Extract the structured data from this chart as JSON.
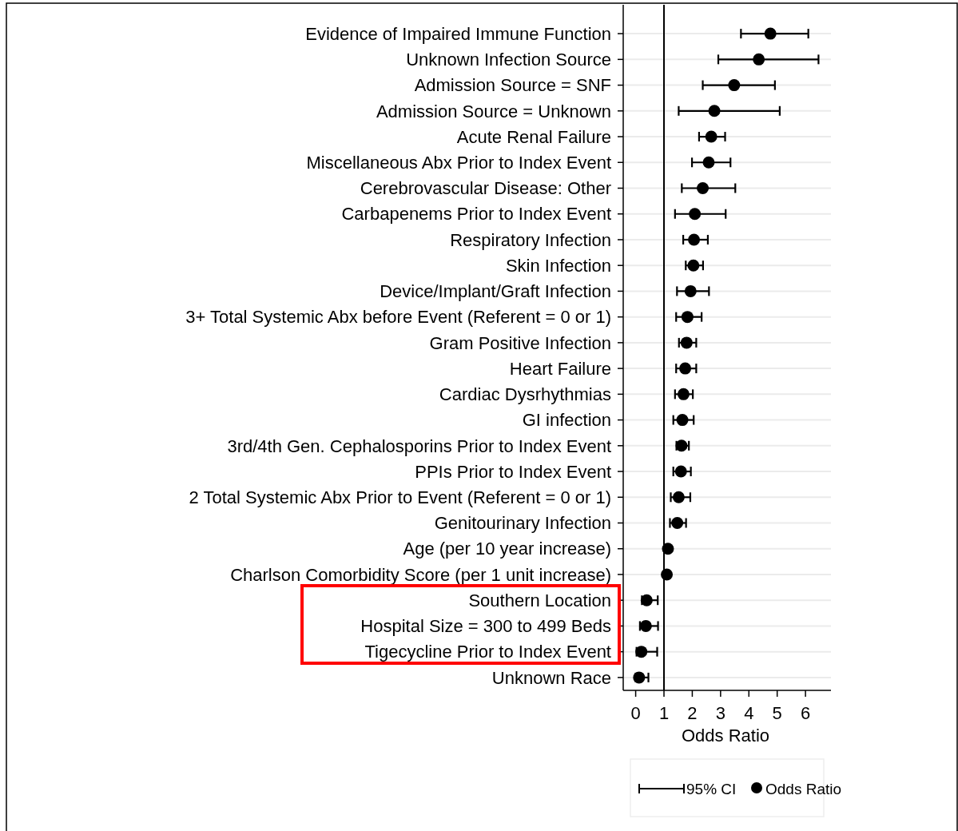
{
  "chart_data": {
    "type": "scatter",
    "orientation": "horizontal",
    "xlabel": "Odds Ratio",
    "categories": [
      "Evidence of Impaired Immune Function",
      "Unknown Infection Source",
      "Admission Source = SNF",
      "Admission Source = Unknown",
      "Acute Renal Failure",
      "Miscellaneous Abx Prior to Index Event",
      "Cerebrovascular Disease: Other",
      "Carbapenems Prior to Index Event",
      "Respiratory Infection",
      "Skin Infection",
      "Device/Implant/Graft Infection",
      "3+ Total Systemic Abx before Event (Referent = 0 or 1)",
      "Gram Positive Infection",
      "Heart Failure",
      "Cardiac Dysrhythmias",
      "GI infection",
      "3rd/4th Gen. Cephalosporins Prior to Index Event",
      "PPIs Prior to  Index Event",
      "2 Total Systemic Abx Prior to Event (Referent = 0 or 1)",
      "Genitourinary Infection",
      "Age (per 10 year increase)",
      "Charlson Comorbidity Score (per 1 unit increase)",
      "Southern Location",
      "Hospital Size = 300 to 499 Beds",
      "Tigecycline Prior to Index Event",
      "Unknown Race"
    ],
    "series": [
      {
        "name": "Odds Ratio",
        "color": "#000000",
        "values": [
          4.76,
          4.35,
          3.48,
          2.78,
          2.67,
          2.58,
          2.37,
          2.09,
          2.06,
          2.04,
          1.94,
          1.83,
          1.8,
          1.75,
          1.69,
          1.65,
          1.62,
          1.6,
          1.52,
          1.47,
          1.14,
          1.1,
          0.39,
          0.36,
          0.2,
          0.12
        ],
        "errors": [
          [
            3.72,
            6.1
          ],
          [
            2.92,
            6.46
          ],
          [
            2.37,
            4.92
          ],
          [
            1.52,
            5.09
          ],
          [
            2.24,
            3.16
          ],
          [
            1.99,
            3.35
          ],
          [
            1.63,
            3.52
          ],
          [
            1.39,
            3.18
          ],
          [
            1.68,
            2.55
          ],
          [
            1.77,
            2.38
          ],
          [
            1.46,
            2.59
          ],
          [
            1.43,
            2.33
          ],
          [
            1.53,
            2.14
          ],
          [
            1.43,
            2.14
          ],
          [
            1.39,
            2.02
          ],
          [
            1.33,
            2.05
          ],
          [
            1.44,
            1.88
          ],
          [
            1.33,
            1.95
          ],
          [
            1.24,
            1.93
          ],
          [
            1.21,
            1.78
          ],
          null,
          null,
          [
            0.22,
            0.78
          ],
          [
            0.15,
            0.79
          ],
          [
            0.03,
            0.76
          ],
          [
            0.0,
            0.45
          ]
        ]
      }
    ],
    "xlim": [
      -0.44,
      6.9
    ],
    "xticks": [
      0,
      1,
      2,
      3,
      4,
      5,
      6
    ],
    "ref_lines": [
      {
        "axis": "x",
        "value": 1,
        "color": "#000000"
      }
    ],
    "annotations": [
      "95% CI"
    ],
    "grid": "y",
    "marker": "circle",
    "legend": "bottom"
  }
}
